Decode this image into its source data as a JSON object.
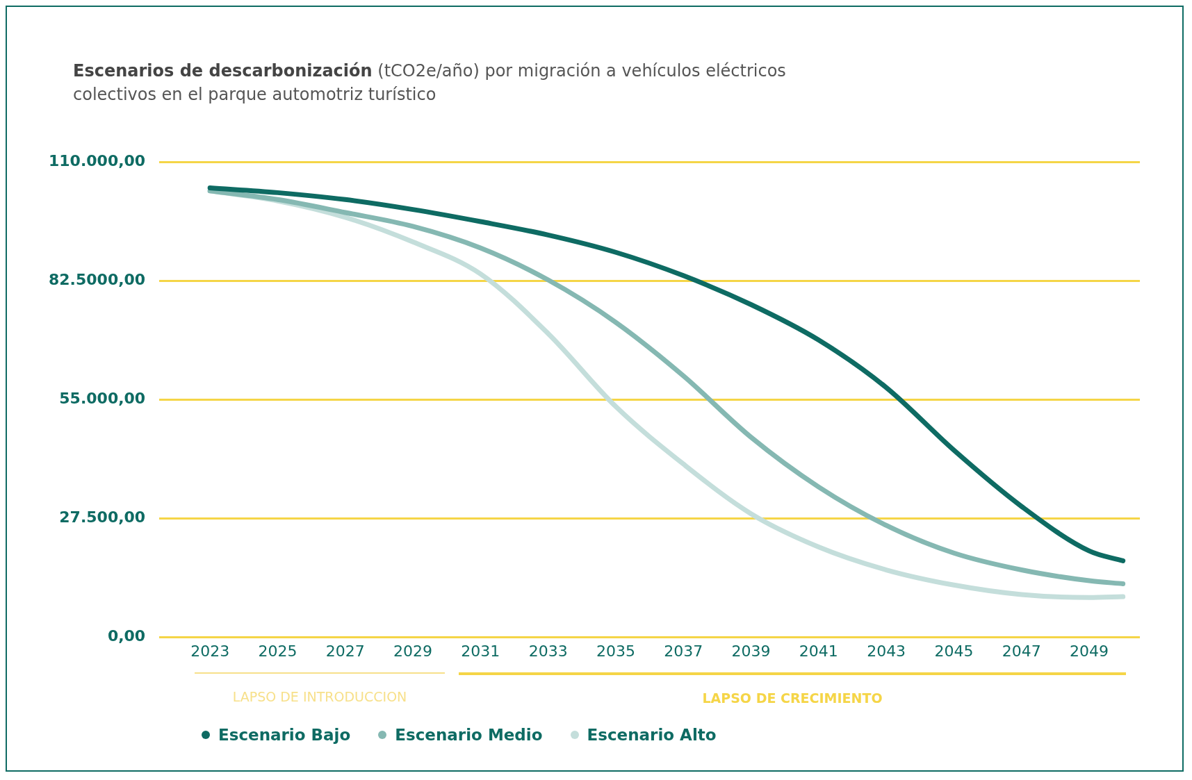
{
  "chart_data": {
    "type": "line",
    "title": "Escenarios de descarbonización",
    "subtitle": "(tCO2e/año) por migración a vehículos eléctricos colectivos en el parque automotriz turístico",
    "x": [
      2023,
      2025,
      2027,
      2029,
      2031,
      2033,
      2035,
      2037,
      2039,
      2041,
      2043,
      2045,
      2047,
      2049,
      2050
    ],
    "series": [
      {
        "name": "Escenario Bajo",
        "color": "#0e6b63",
        "values": [
          104000,
          102900,
          101300,
          99000,
          96200,
          93100,
          89100,
          83700,
          77000,
          68800,
          57800,
          43300,
          30300,
          20000,
          17700
        ]
      },
      {
        "name": "Escenario Medio",
        "color": "#85b8b2",
        "values": [
          103300,
          101300,
          98300,
          95100,
          90100,
          82700,
          72900,
          60500,
          46300,
          34800,
          25900,
          19500,
          15600,
          13100,
          12400
        ]
      },
      {
        "name": "Escenario Alto",
        "color": "#c4dedb",
        "values": [
          103300,
          101000,
          97200,
          91500,
          84100,
          70300,
          53400,
          40100,
          28600,
          20900,
          15600,
          12100,
          9900,
          9200,
          9400
        ]
      }
    ],
    "xlim": [
      2021.5,
      2050.5
    ],
    "xticks": [
      2023,
      2025,
      2027,
      2029,
      2031,
      2033,
      2035,
      2037,
      2039,
      2041,
      2043,
      2045,
      2047,
      2049
    ],
    "ylim": [
      0,
      110000
    ],
    "yticks": [
      {
        "value": 0,
        "label": "0,00"
      },
      {
        "value": 27500,
        "label": "27.500,00"
      },
      {
        "value": 55000,
        "label": "55.000,00"
      },
      {
        "value": 82500,
        "label": "82.5000,00"
      },
      {
        "value": 110000,
        "label": "110.000,00"
      }
    ],
    "grid": "y",
    "legend": "bottom left",
    "marker": "none",
    "line_style": "solid",
    "annotations": [
      "LAPSO DE INTRODUCCION",
      "LAPSO DE CRECIMIENTO"
    ]
  }
}
